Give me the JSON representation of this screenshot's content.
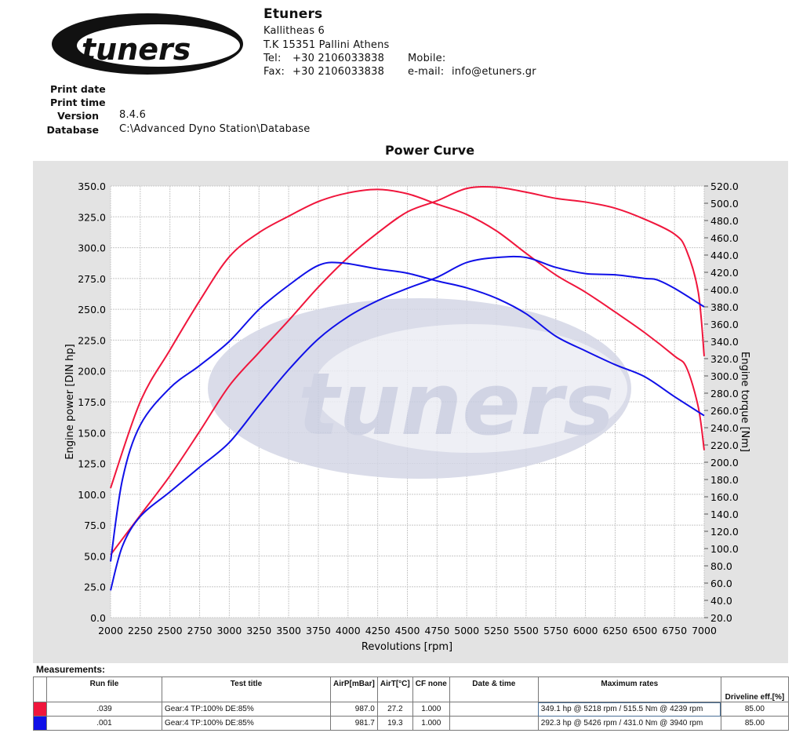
{
  "company": {
    "name": "Etuners",
    "address1": "Kallitheas 6",
    "address2": "T.K 15351 Pallini Athens",
    "tel_label": "Tel:",
    "tel": "+30 2106033838",
    "fax_label": "Fax:",
    "fax": "+30 2106033838",
    "mobile_label": "Mobile:",
    "email_label": "e-mail:",
    "email": "info@etuners.gr",
    "logo_text": "tuners"
  },
  "meta": {
    "print_date_label": "Print date",
    "print_time_label": "Print time",
    "version_label": "Version",
    "version": "8.4.6",
    "database_label": "Database",
    "database": "C:\\Advanced Dyno Station\\Database"
  },
  "colors": {
    "run1": "#f0163c",
    "run2": "#1010e8",
    "panel": "#e3e3e3"
  },
  "chart_data": {
    "type": "line",
    "title": "Power Curve",
    "xlabel": "Revolutions [rpm]",
    "ylabel": "Engine power [DIN hp]",
    "y2label": "Engine torque [Nm]",
    "xlim": [
      2000,
      7000
    ],
    "ylim": [
      0,
      350
    ],
    "y2lim": [
      20,
      520
    ],
    "xticks": [
      "2000",
      "2250",
      "2500",
      "2750",
      "3000",
      "3250",
      "3500",
      "3750",
      "4000",
      "4250",
      "4500",
      "4750",
      "5000",
      "5250",
      "5500",
      "5750",
      "6000",
      "6250",
      "6500",
      "6750",
      "7000"
    ],
    "yticks": [
      "0.0",
      "25.0",
      "50.0",
      "75.0",
      "100.0",
      "125.0",
      "150.0",
      "175.0",
      "200.0",
      "225.0",
      "250.0",
      "275.0",
      "300.0",
      "325.0",
      "350.0"
    ],
    "y2ticks": [
      "20.0",
      "40.0",
      "60.0",
      "80.0",
      "100.0",
      "120.0",
      "140.0",
      "160.0",
      "180.0",
      "200.0",
      "220.0",
      "240.0",
      "260.0",
      "280.0",
      "300.0",
      "320.0",
      "340.0",
      "360.0",
      "380.0",
      "400.0",
      "420.0",
      "440.0",
      "460.0",
      "480.0",
      "500.0",
      "520.0"
    ],
    "grid": true,
    "series": [
      {
        "name": ".039 power",
        "axis": "left",
        "color": "#f0163c",
        "x": [
          2000,
          2250,
          2500,
          2750,
          3000,
          3250,
          3500,
          3750,
          4000,
          4250,
          4500,
          4750,
          5000,
          5250,
          5500,
          5750,
          6000,
          6250,
          6500,
          6750,
          6850,
          6950,
          7000
        ],
        "y": [
          51,
          83,
          115,
          151,
          188,
          215,
          241,
          268,
          292,
          312,
          329,
          338,
          348,
          349,
          345,
          340,
          337,
          332,
          323,
          311,
          298,
          264,
          212
        ]
      },
      {
        "name": ".039 torque",
        "axis": "right",
        "color": "#f0163c",
        "x": [
          2000,
          2250,
          2500,
          2750,
          3000,
          3250,
          3500,
          3750,
          4000,
          4250,
          4500,
          4750,
          5000,
          5250,
          5500,
          5750,
          6000,
          6250,
          6500,
          6750,
          6850,
          6950,
          7000
        ],
        "y": [
          170,
          270,
          330,
          387,
          438,
          466,
          485,
          502,
          512,
          516,
          511,
          499,
          487,
          468,
          442,
          417,
          397,
          374,
          350,
          323,
          310,
          264,
          214
        ]
      },
      {
        "name": ".001 power",
        "axis": "left",
        "color": "#1010e8",
        "x": [
          2000,
          2100,
          2250,
          2500,
          2750,
          3000,
          3250,
          3500,
          3750,
          4000,
          4250,
          4500,
          4750,
          5000,
          5250,
          5500,
          5750,
          6000,
          6250,
          6500,
          6600,
          6750,
          7000
        ],
        "y": [
          22,
          58,
          82,
          102,
          122,
          142,
          172,
          201,
          226,
          244,
          257,
          267,
          276,
          288,
          292,
          292,
          284,
          279,
          278,
          275,
          274,
          267,
          252
        ]
      },
      {
        "name": ".001 torque",
        "axis": "right",
        "color": "#1010e8",
        "x": [
          2000,
          2100,
          2250,
          2500,
          2750,
          3000,
          3250,
          3500,
          3750,
          3940,
          4250,
          4500,
          4750,
          5000,
          5250,
          5500,
          5750,
          6000,
          6250,
          6500,
          6750,
          7000
        ],
        "y": [
          85,
          180,
          243,
          286,
          312,
          340,
          377,
          405,
          428,
          431,
          424,
          419,
          410,
          402,
          390,
          372,
          346,
          329,
          313,
          299,
          276,
          254
        ]
      }
    ]
  },
  "measurements": {
    "title": "Measurements:",
    "headers": [
      "Run file",
      "Test title",
      "AirP[mBar]",
      "AirT[°C]",
      "CF none",
      "Date & time",
      "Maximum rates",
      "Driveline eff.[%]"
    ],
    "rows": [
      {
        "run": ".039",
        "test": "Gear:4 TP:100% DE:85%",
        "airp": "987.0",
        "airt": "27.2",
        "cf": "1.000",
        "date": "",
        "max": "349.1 hp @ 5218 rpm / 515.5 Nm @ 4239 rpm",
        "eff": "85.00"
      },
      {
        "run": ".001",
        "test": "Gear:4 TP:100% DE:85%",
        "airp": "981.7",
        "airt": "19.3",
        "cf": "1.000",
        "date": "",
        "max": "292.3 hp @ 5426 rpm / 431.0 Nm @ 3940 rpm",
        "eff": "85.00"
      }
    ]
  }
}
